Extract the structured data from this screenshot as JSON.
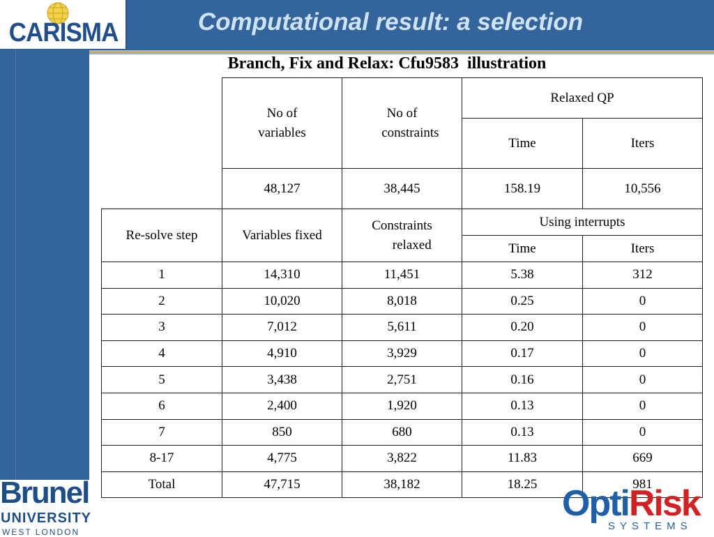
{
  "slide": {
    "title": "Computational result: a selection",
    "subtitle": "Branch, Fix and Relax: Cfu9583  illustration"
  },
  "logos": {
    "carisma": "CARISMA",
    "brunel": {
      "name": "Brunel",
      "university": "UNIVERSITY",
      "location": "WEST LONDON"
    },
    "optirisk": {
      "opti": "Opti",
      "risk": "Risk",
      "systems": "SYSTEMS"
    }
  },
  "colors": {
    "title_bar": "#33649c",
    "title_text": "#cfe3f7",
    "accent_rule": "#e4a43a",
    "optirisk_blue": "#1d5fa8",
    "optirisk_red": "#d42020"
  },
  "upper_table": {
    "header_variables": "No of\nvariables",
    "header_constraints": "No of\n     constraints",
    "group_header": "Relaxed QP",
    "time_header": "Time",
    "iters_header": "Iters",
    "values": [
      "48,127",
      "38,445",
      "158.19",
      "10,556"
    ]
  },
  "lower_table": {
    "header_step": "Re-solve step",
    "header_fixed": "Variables fixed",
    "header_relaxed": "Constraints\n      relaxed",
    "group_header": "Using interrupts",
    "time_header": "Time",
    "iters_header": "Iters",
    "rows": [
      [
        "1",
        "14,310",
        "11,451",
        "5.38",
        "312"
      ],
      [
        "2",
        "10,020",
        "8,018",
        "0.25",
        "0"
      ],
      [
        "3",
        "7,012",
        "5,611",
        "0.20",
        "0"
      ],
      [
        "4",
        "4,910",
        "3,929",
        "0.17",
        "0"
      ],
      [
        "5",
        "3,438",
        "2,751",
        "0.16",
        "0"
      ],
      [
        "6",
        "2,400",
        "1,920",
        "0.13",
        "0"
      ],
      [
        "7",
        "850",
        "680",
        "0.13",
        "0"
      ],
      [
        "8-17",
        "4,775",
        "3,822",
        "11.83",
        "669"
      ],
      [
        "Total",
        "47,715",
        "38,182",
        "18.25",
        "981"
      ]
    ]
  }
}
